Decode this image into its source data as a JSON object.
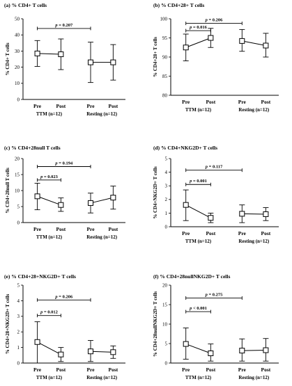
{
  "chart_data": [
    {
      "type": "line",
      "title": "(a) % CD4+ T cells",
      "ylabel": "% CD4+ T cells",
      "ylim": [
        0,
        50
      ],
      "yticks": [
        0,
        10,
        20,
        30,
        40,
        50
      ],
      "categories": [
        "Pre",
        "Post",
        "Pre",
        "Post"
      ],
      "groups": [
        "TTM (n=12)",
        "Resting (n=12)"
      ],
      "series": [
        {
          "mean": [
            28.5,
            28.0
          ],
          "lower": [
            20.5,
            18.5
          ],
          "upper": [
            36.5,
            37.5
          ]
        },
        {
          "mean": [
            23.0,
            23.0
          ],
          "lower": [
            10.5,
            12.0
          ],
          "upper": [
            35.5,
            34.0
          ]
        }
      ],
      "annotations": [
        {
          "text": "p = 0.207",
          "from": 0,
          "to": 2,
          "y": 44
        }
      ]
    },
    {
      "type": "line",
      "title": "(b) % CD4+28+ T cells",
      "ylabel": "% CD4+28+ T cells",
      "ylim": [
        80,
        100
      ],
      "yticks": [
        80,
        85,
        90,
        95,
        100
      ],
      "categories": [
        "Pre",
        "Post",
        "Pre",
        "Post"
      ],
      "groups": [
        "TTM (n=12)",
        "Resting (n=12)"
      ],
      "series": [
        {
          "mean": [
            92.5,
            95.0
          ],
          "lower": [
            89.0,
            92.5
          ],
          "upper": [
            96.0,
            97.5
          ]
        },
        {
          "mean": [
            94.2,
            93.0
          ],
          "lower": [
            91.5,
            90.0
          ],
          "upper": [
            97.2,
            96.2
          ]
        }
      ],
      "annotations": [
        {
          "text": "p = 0.206",
          "from": 0,
          "to": 2,
          "y": 98.8
        },
        {
          "text": "p = 0.016",
          "from": 0,
          "to": 1,
          "y": 96.9
        }
      ]
    },
    {
      "type": "line",
      "title": "(c) % CD4+28null T cells",
      "ylabel": "% CD4+28null T cells",
      "ylim": [
        0,
        20
      ],
      "yticks": [
        0,
        5,
        10,
        15,
        20
      ],
      "categories": [
        "Pre",
        "Post",
        "Pre",
        "Post"
      ],
      "groups": [
        "TTM (n=12)",
        "Resting (n=12)"
      ],
      "series": [
        {
          "mean": [
            8.2,
            5.5
          ],
          "lower": [
            4.0,
            3.5
          ],
          "upper": [
            12.3,
            7.7
          ]
        },
        {
          "mean": [
            6.1,
            7.8
          ],
          "lower": [
            3.0,
            4.2
          ],
          "upper": [
            9.2,
            11.4
          ]
        }
      ],
      "annotations": [
        {
          "text": "p = 0.194",
          "from": 0,
          "to": 2,
          "y": 17.5
        },
        {
          "text": "p = 0.023",
          "from": 0,
          "to": 1,
          "y": 13.3
        }
      ]
    },
    {
      "type": "line",
      "title": "(d) % CD4+NKG2D+ T cells",
      "ylabel": "% CD4+NKG2D+ T cells",
      "ylim": [
        0,
        5
      ],
      "yticks": [
        0,
        1,
        2,
        3,
        4,
        5
      ],
      "categories": [
        "Pre",
        "Post",
        "Pre",
        "Post"
      ],
      "groups": [
        "TTM (n=12)",
        "Resting (n=12)"
      ],
      "series": [
        {
          "mean": [
            1.6,
            0.65
          ],
          "lower": [
            0.45,
            0.3
          ],
          "upper": [
            2.7,
            1.0
          ]
        },
        {
          "mean": [
            0.95,
            0.92
          ],
          "lower": [
            0.3,
            0.45
          ],
          "upper": [
            1.6,
            1.4
          ]
        }
      ],
      "annotations": [
        {
          "text": "p = 0.117",
          "from": 0,
          "to": 2,
          "y": 4.15
        },
        {
          "text": "p = 0.001",
          "from": 0,
          "to": 1,
          "y": 3.1
        }
      ]
    },
    {
      "type": "line",
      "title": "(e) % CD4+28+NKG2D+ T cells",
      "ylabel": "% CD4+28+NKG2D+ T cells",
      "ylim": [
        0,
        5
      ],
      "yticks": [
        0,
        1,
        2,
        3,
        4,
        5
      ],
      "categories": [
        "Pre",
        "Post",
        "Pre",
        "Post"
      ],
      "groups": [
        "TTM (n=12)",
        "Resting (n=12)"
      ],
      "series": [
        {
          "mean": [
            1.35,
            0.55
          ],
          "lower": [
            0.0,
            0.1
          ],
          "upper": [
            2.65,
            1.0
          ]
        },
        {
          "mean": [
            0.75,
            0.7
          ],
          "lower": [
            0.1,
            0.3
          ],
          "upper": [
            1.45,
            1.1
          ]
        }
      ],
      "annotations": [
        {
          "text": "p = 0.206",
          "from": 0,
          "to": 2,
          "y": 4.05
        },
        {
          "text": "p = 0.012",
          "from": 0,
          "to": 1,
          "y": 3.05
        }
      ]
    },
    {
      "type": "line",
      "title": "(f) % CD4+28nullNKG2D+ T cells",
      "ylabel": "% CD4+28nullNKG2D+ T cells",
      "ylim": [
        0,
        20
      ],
      "yticks": [
        0,
        5,
        10,
        15,
        20
      ],
      "categories": [
        "Pre",
        "Post",
        "Pre",
        "Post"
      ],
      "groups": [
        "TTM (n=12)",
        "Resting (n=12)"
      ],
      "series": [
        {
          "mean": [
            4.9,
            2.5
          ],
          "lower": [
            1.0,
            0.5
          ],
          "upper": [
            9.0,
            4.9
          ]
        },
        {
          "mean": [
            3.2,
            3.3
          ],
          "lower": [
            0.5,
            0.5
          ],
          "upper": [
            6.2,
            6.3
          ]
        }
      ],
      "annotations": [
        {
          "text": "p = 0.275",
          "from": 0,
          "to": 2,
          "y": 16.7
        },
        {
          "text": "p < 0.001",
          "from": 0,
          "to": 1,
          "y": 13.2
        }
      ]
    }
  ]
}
